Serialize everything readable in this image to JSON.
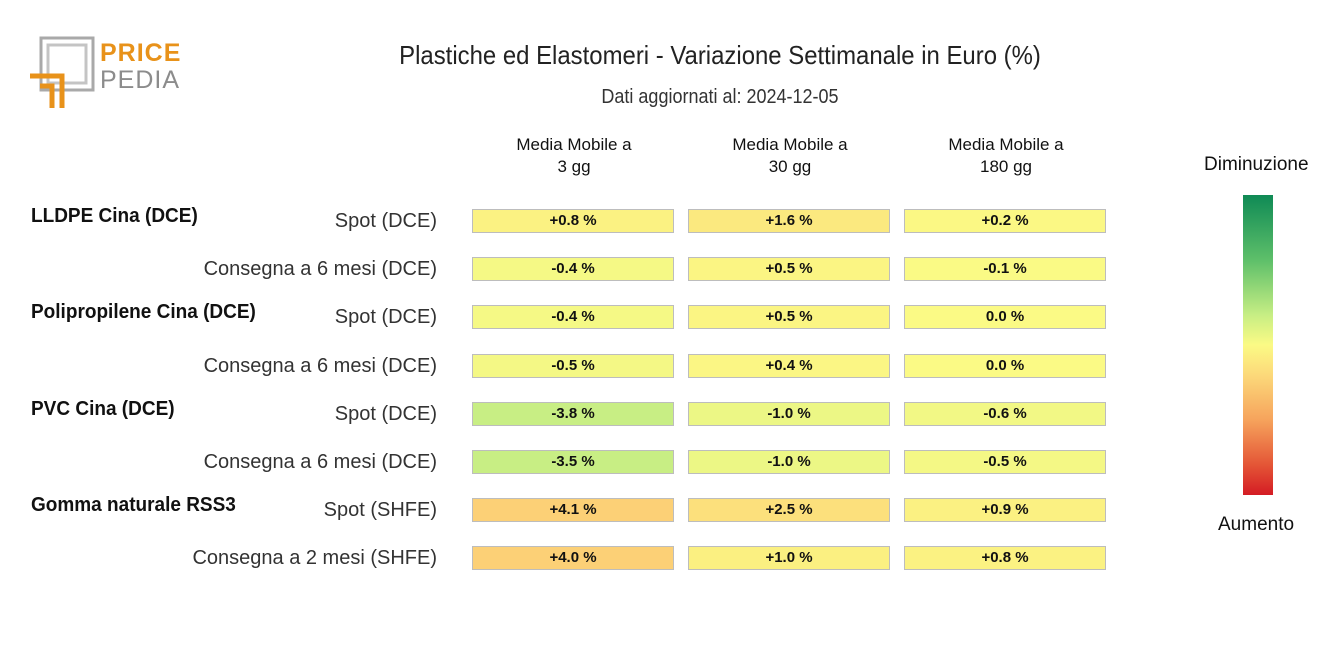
{
  "logo": {
    "line1": "PRICE",
    "line2": "PEDIA"
  },
  "title": "Plastiche ed Elastomeri - Variazione Settimanale in Euro (%)",
  "subtitle": "Dati aggiornati al: 2024-12-05",
  "legend": {
    "top": "Diminuzione",
    "bottom": "Aumento"
  },
  "colors": {
    "cell_border": "#bdbdbd",
    "scale_top": "#0f8a55",
    "scale_mid": "#fbfa85",
    "scale_bottom": "#d41c24"
  },
  "chart_data": {
    "type": "table",
    "title": "Plastiche ed Elastomeri - Variazione Settimanale in Euro (%)",
    "columns": [
      {
        "line1": "Media Mobile a",
        "line2": "3 gg"
      },
      {
        "line1": "Media Mobile a",
        "line2": "30 gg"
      },
      {
        "line1": "Media Mobile a",
        "line2": "180 gg"
      }
    ],
    "groups": [
      {
        "name": "LLDPE Cina (DCE)",
        "rows": [
          {
            "label": "Spot (DCE)",
            "values": [
              0.8,
              1.6,
              0.2
            ],
            "display": [
              "+0.8 %",
              "+1.6 %",
              "+0.2 %"
            ]
          },
          {
            "label": "Consegna a 6 mesi (DCE)",
            "values": [
              -0.4,
              0.5,
              -0.1
            ],
            "display": [
              "-0.4 %",
              "+0.5 %",
              "-0.1 %"
            ]
          }
        ]
      },
      {
        "name": "Polipropilene Cina (DCE)",
        "rows": [
          {
            "label": "Spot (DCE)",
            "values": [
              -0.4,
              0.5,
              0.0
            ],
            "display": [
              "-0.4 %",
              "+0.5 %",
              "0.0 %"
            ]
          },
          {
            "label": "Consegna a 6 mesi (DCE)",
            "values": [
              -0.5,
              0.4,
              0.0
            ],
            "display": [
              "-0.5 %",
              "+0.4 %",
              "0.0 %"
            ]
          }
        ]
      },
      {
        "name": "PVC Cina (DCE)",
        "rows": [
          {
            "label": "Spot (DCE)",
            "values": [
              -3.8,
              -1.0,
              -0.6
            ],
            "display": [
              "-3.8 %",
              "-1.0 %",
              "-0.6 %"
            ]
          },
          {
            "label": "Consegna a 6 mesi (DCE)",
            "values": [
              -3.5,
              -1.0,
              -0.5
            ],
            "display": [
              "-3.5 %",
              "-1.0 %",
              "-0.5 %"
            ]
          }
        ]
      },
      {
        "name": "Gomma naturale RSS3",
        "rows": [
          {
            "label": "Spot (SHFE)",
            "values": [
              4.1,
              2.5,
              0.9
            ],
            "display": [
              "+4.1 %",
              "+2.5 %",
              "+0.9 %"
            ]
          },
          {
            "label": "Consegna a 2 mesi (SHFE)",
            "values": [
              4.0,
              1.0,
              0.8
            ],
            "display": [
              "+4.0 %",
              "+1.0 %",
              "+0.8 %"
            ]
          }
        ]
      }
    ]
  }
}
